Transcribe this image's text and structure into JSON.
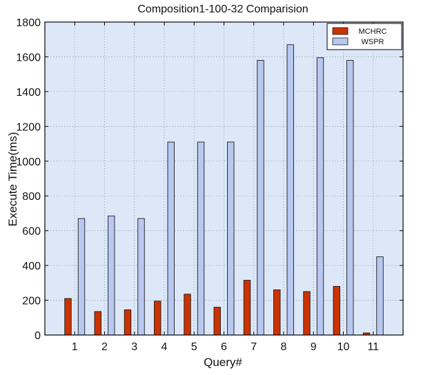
{
  "chart_data": {
    "type": "bar",
    "title": "Composition1-100-32 Comparision",
    "xlabel": "Query#",
    "ylabel": "Execute Time(ms)",
    "categories": [
      "1",
      "2",
      "3",
      "4",
      "5",
      "6",
      "7",
      "8",
      "9",
      "10",
      "11"
    ],
    "series": [
      {
        "name": "MCHRC",
        "color": "#cc3300",
        "values": [
          210,
          135,
          145,
          195,
          235,
          160,
          315,
          260,
          250,
          280,
          12
        ]
      },
      {
        "name": "WSPR",
        "color": "#b8c8f0",
        "values": [
          670,
          685,
          670,
          1110,
          1110,
          1110,
          1580,
          1670,
          1595,
          1580,
          450
        ]
      }
    ],
    "ylim": [
      0,
      1800
    ],
    "yticks": [
      0,
      200,
      400,
      600,
      800,
      1000,
      1200,
      1400,
      1600,
      1800
    ],
    "grid": true,
    "legend_position": "top-right",
    "plot_background": "#dce8f8"
  }
}
